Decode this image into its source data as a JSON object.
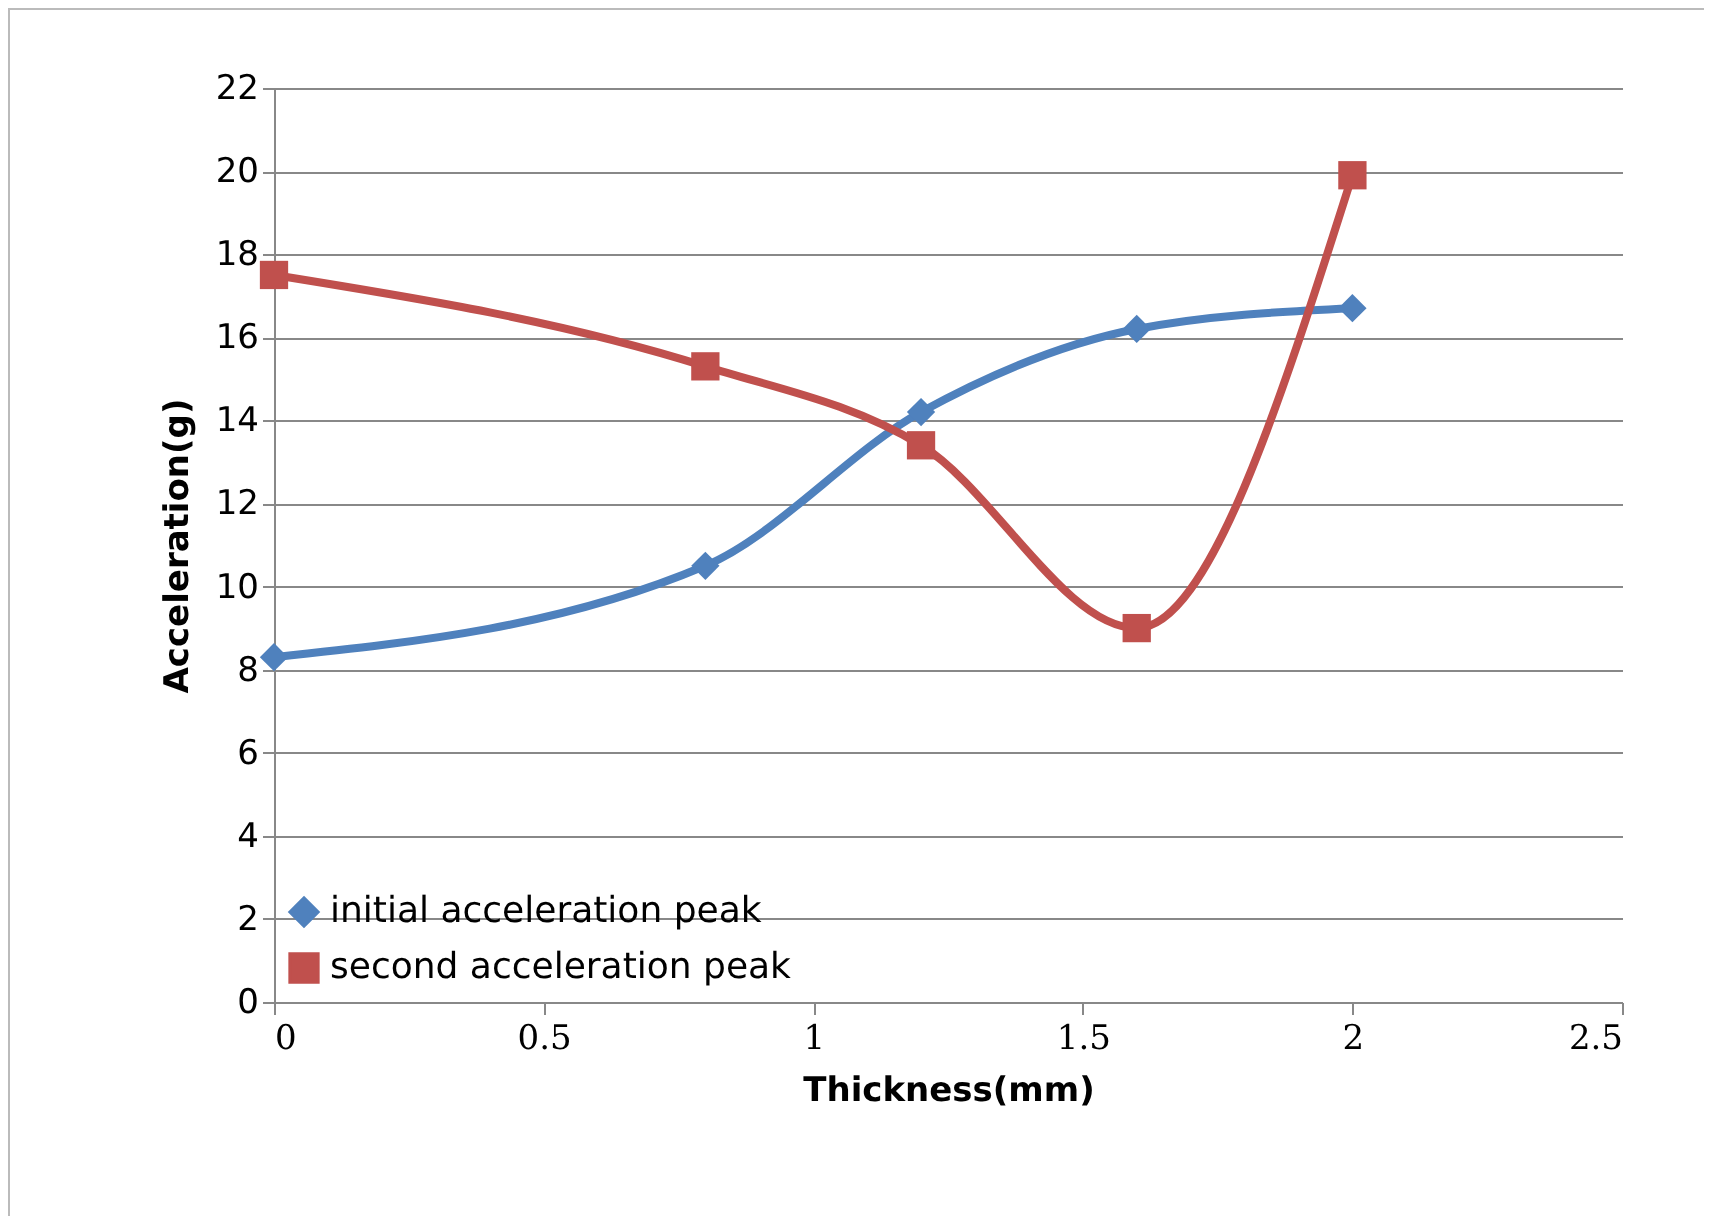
{
  "chart_data": {
    "type": "line",
    "xlabel": "Thickness(mm)",
    "ylabel": "Acceleration(g)",
    "x": [
      0,
      0.8,
      1.2,
      1.6,
      2
    ],
    "series": [
      {
        "name": "initial acceleration peak",
        "color": "#4f81bd",
        "marker": "diamond",
        "values": [
          8.3,
          10.5,
          14.2,
          16.2,
          16.7
        ]
      },
      {
        "name": "second acceleration peak",
        "color": "#c0504d",
        "marker": "square",
        "values": [
          17.5,
          15.3,
          13.4,
          9.0,
          19.9
        ]
      }
    ],
    "xlim": [
      0,
      2.5
    ],
    "xticks": [
      0,
      0.5,
      1,
      1.5,
      2,
      2.5
    ],
    "ylim": [
      0,
      22
    ],
    "yticks": [
      0,
      2,
      4,
      6,
      8,
      10,
      12,
      14,
      16,
      18,
      20,
      22
    ],
    "grid": "y",
    "legend": "bottom left",
    "line_style": "solid"
  }
}
